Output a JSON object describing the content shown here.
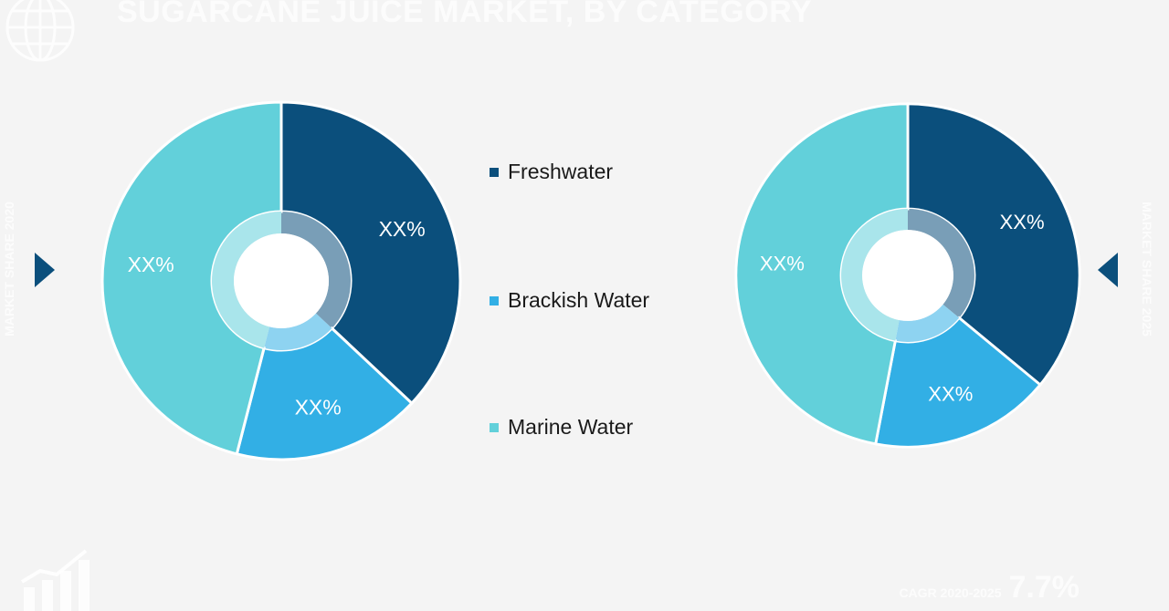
{
  "title": "SUGARCANE JUICE MARKET, BY CATEGORY",
  "left_side_label": "MARKET SHARE 2020",
  "right_side_label": "MARKET SHARE 2025",
  "cagr": {
    "label": "CAGR 2020-2025",
    "value": "7.7%"
  },
  "legend": [
    {
      "label": "Freshwater",
      "color": "#0b4f7c"
    },
    {
      "label": "Brackish Water",
      "color": "#32afe5"
    },
    {
      "label": "Marine Water",
      "color": "#62d0da"
    }
  ],
  "chart_data": [
    {
      "type": "pie",
      "series": "donut",
      "categories": [
        "Freshwater",
        "Brackish Water",
        "Marine Water"
      ],
      "values": [
        37,
        17,
        46
      ],
      "data_labels": [
        "XX%",
        "XX%",
        "XX%"
      ],
      "colors": [
        "#0b4f7c",
        "#32afe5",
        "#62d0da"
      ],
      "legend_position": "center"
    },
    {
      "type": "pie",
      "series": "donut",
      "categories": [
        "Freshwater",
        "Brackish Water",
        "Marine Water"
      ],
      "values": [
        36,
        17,
        47
      ],
      "data_labels": [
        "XX%",
        "XX%",
        "XX%"
      ],
      "colors": [
        "#0b4f7c",
        "#32afe5",
        "#62d0da"
      ],
      "legend_position": "center"
    }
  ]
}
